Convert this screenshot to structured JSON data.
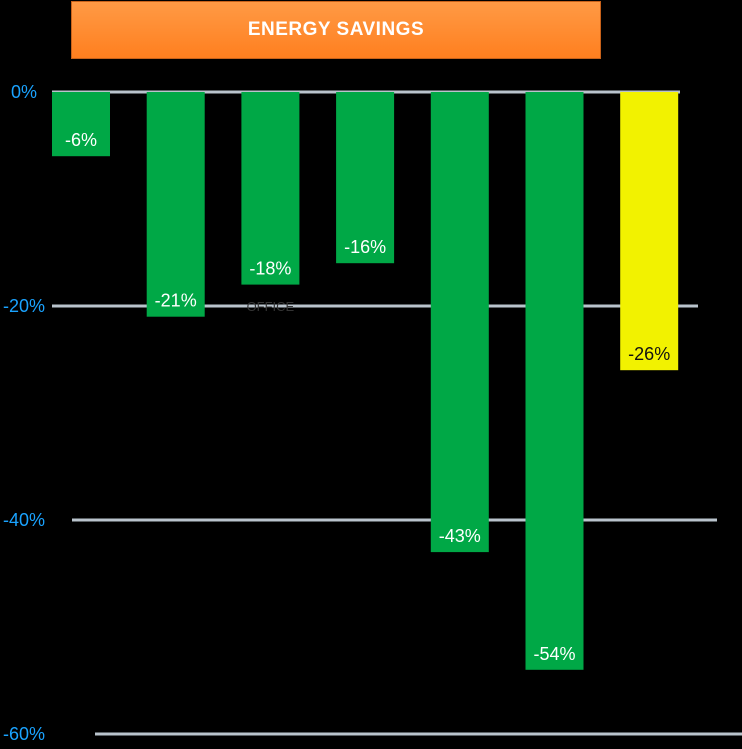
{
  "chart_data": {
    "type": "bar",
    "title": "ENERGY SAVINGS",
    "xlabel": "",
    "ylabel": "",
    "ylim": [
      -60,
      0
    ],
    "yticks": [
      {
        "value": 0,
        "label": "0%"
      },
      {
        "value": -20,
        "label": "-20%"
      },
      {
        "value": -40,
        "label": "-40%"
      },
      {
        "value": -60,
        "label": "-60%"
      }
    ],
    "grid": true,
    "values": [
      -6,
      -21,
      -18,
      -16,
      -43,
      -54,
      -26
    ],
    "data_labels": [
      "-6%",
      "-21%",
      "-18%",
      "-16%",
      "-43%",
      "-54%",
      "-26%"
    ],
    "bar_colors": [
      "#00a846",
      "#00a846",
      "#00a846",
      "#00a846",
      "#00a846",
      "#00a846",
      "#f2f200"
    ],
    "annotations": [
      {
        "text": "OFFICE",
        "near_bar": 3
      }
    ]
  },
  "colors": {
    "background": "#000000",
    "title_bg": "#ff8a2e",
    "tick_text": "#1aa3ff",
    "gridline": "#b9c3cc",
    "bar_green": "#00a846",
    "bar_yellow": "#f2f200"
  }
}
